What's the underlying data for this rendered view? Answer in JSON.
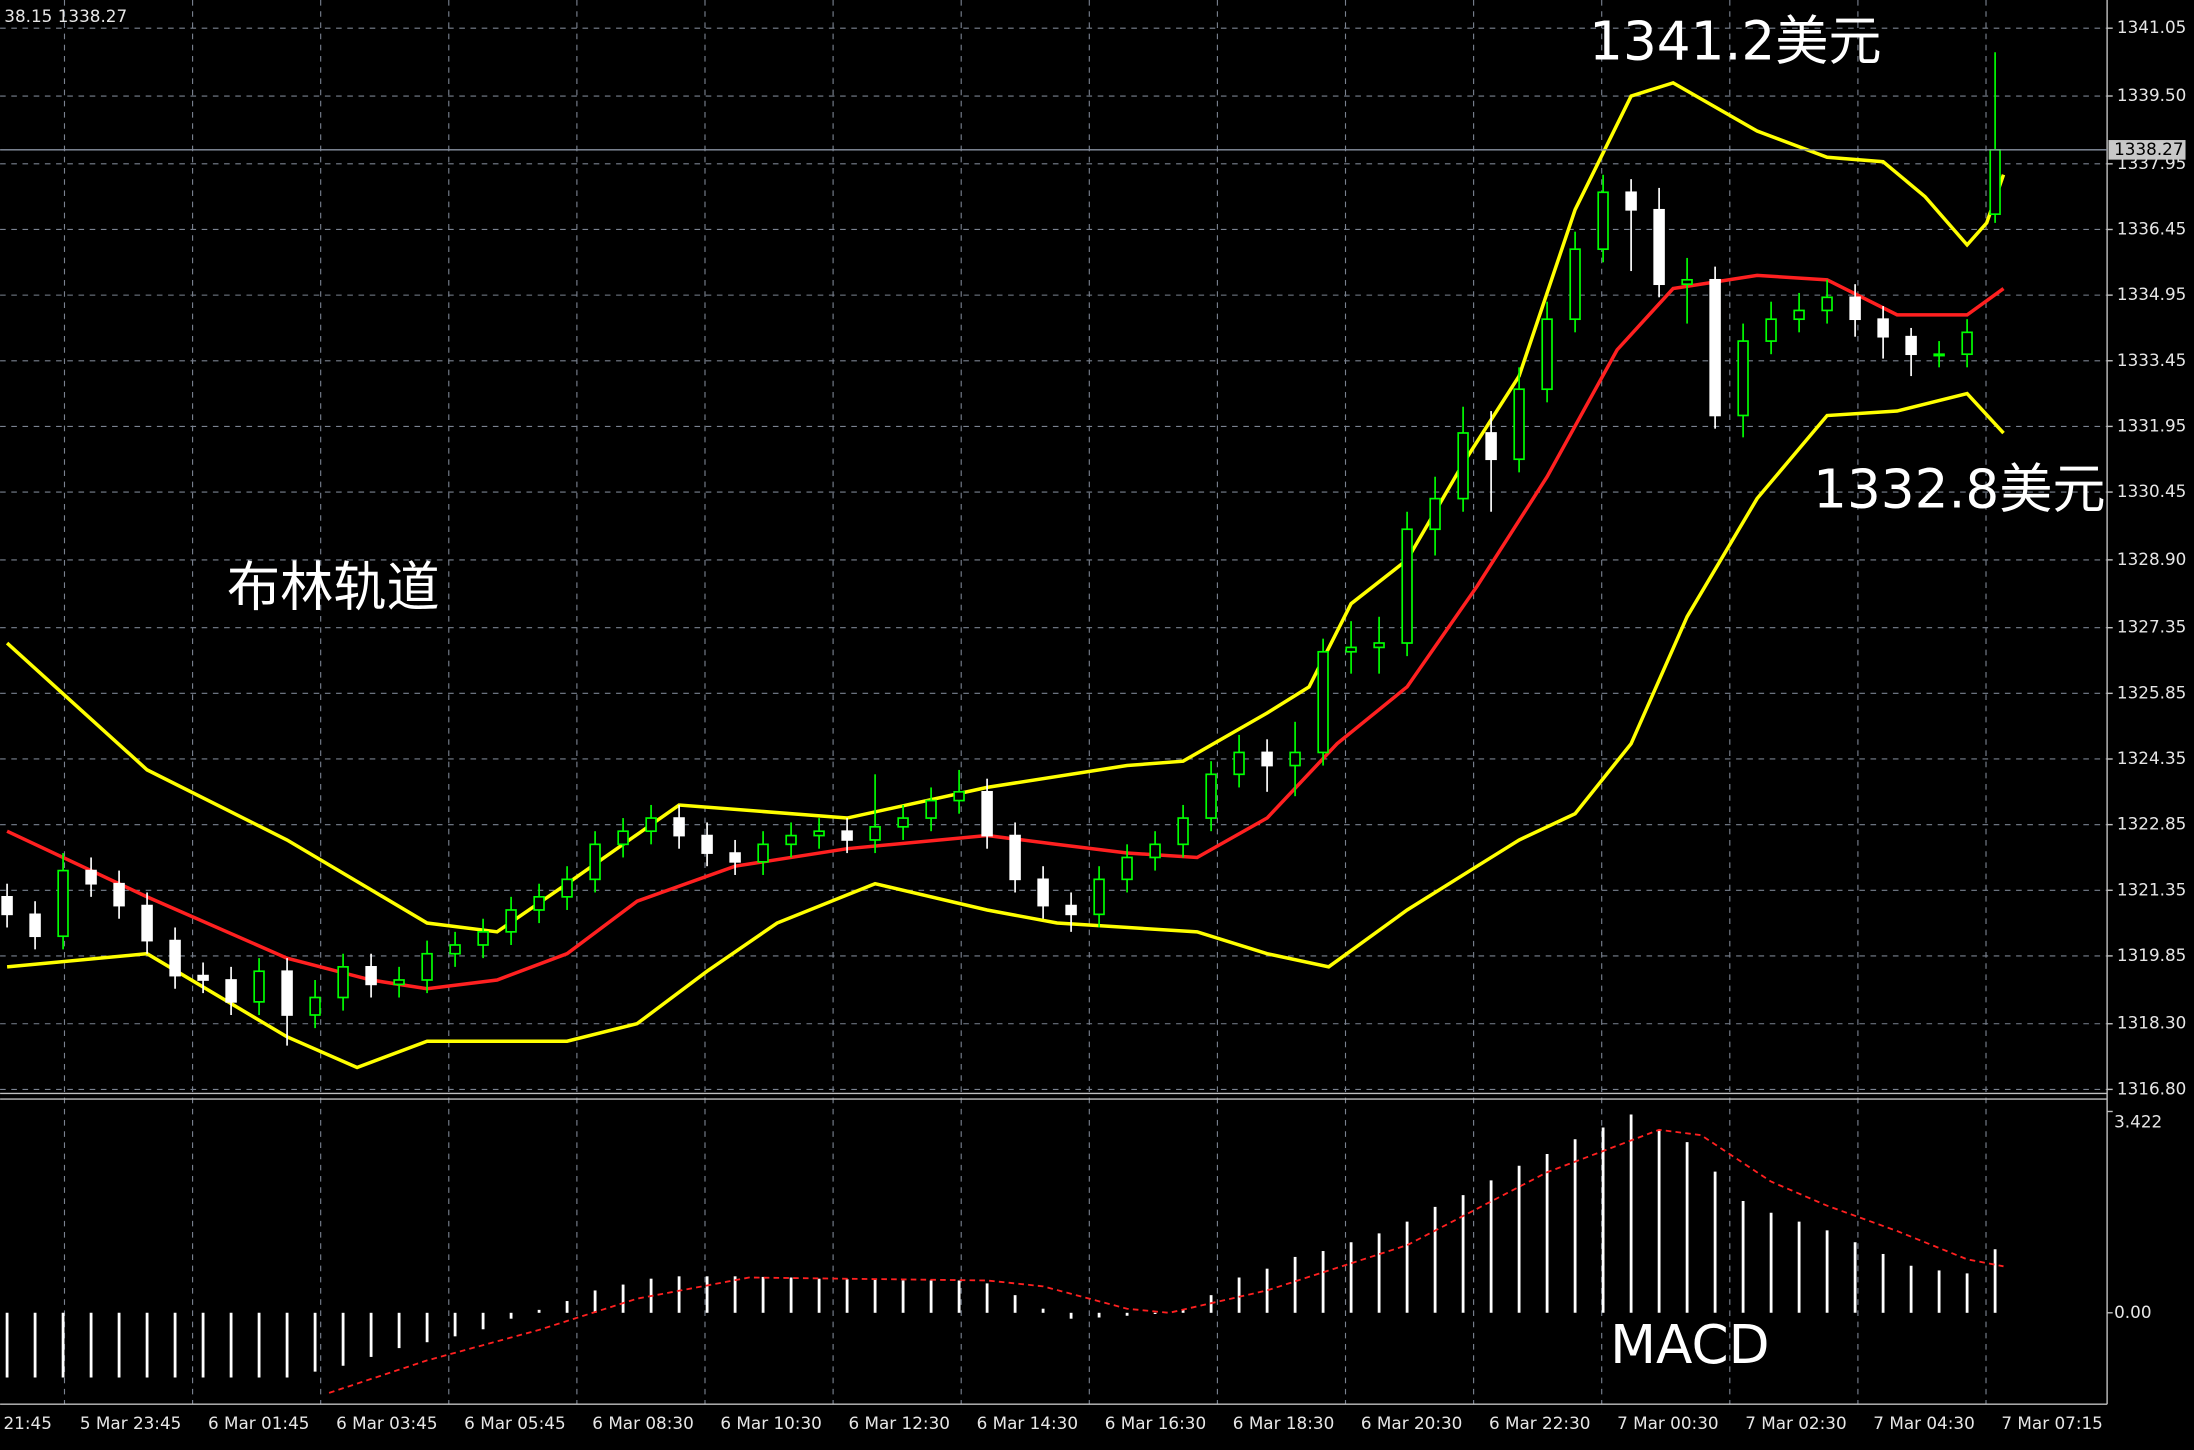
{
  "chart_data": [
    {
      "type": "candlestick",
      "info": "38.15 1338.27",
      "annotations": [
        "1341.2美元",
        "1332.8美元",
        "布林轨道"
      ],
      "time_labels": [
        "21:45",
        "5 Mar 23:45",
        "6 Mar 01:45",
        "6 Mar 03:45",
        "6 Mar 05:45",
        "6 Mar 08:30",
        "6 Mar 10:30",
        "6 Mar 12:30",
        "6 Mar 14:30",
        "6 Mar 16:30",
        "6 Mar 18:30",
        "6 Mar 20:30",
        "6 Mar 22:30",
        "7 Mar 00:30",
        "7 Mar 02:30",
        "7 Mar 04:30",
        "7 Mar 07:15"
      ],
      "ylim": [
        1316.74,
        1341.63
      ],
      "yticks": [
        1341.05,
        {
          "value": 1339.5,
          "label": "1339.50"
        },
        1337.95,
        1336.45,
        1334.95,
        1333.45,
        1331.95,
        1330.45,
        {
          "value": 1328.9,
          "label": "1328.90"
        },
        1327.35,
        1325.85,
        1324.35,
        1322.85,
        1321.35,
        1319.85,
        {
          "value": 1318.3,
          "label": "1318.30"
        },
        {
          "value": 1316.8,
          "label": "1316.80"
        }
      ],
      "grid": true,
      "up_color": "#00ff00",
      "down_color": "#ffffff",
      "current_price": 1338.27,
      "open": [
        1321.2,
        1320.8,
        1320.3,
        1321.8,
        1321.5,
        1321.0,
        1320.2,
        1319.4,
        1319.3,
        1318.8,
        1319.5,
        1318.5,
        1318.9,
        1319.6,
        1319.2,
        1319.3,
        1319.9,
        1320.1,
        1320.4,
        1320.9,
        1321.2,
        1321.6,
        1322.4,
        1322.7,
        1323.0,
        1322.6,
        1322.2,
        1322.0,
        1322.4,
        1322.6,
        1322.7,
        1322.5,
        1322.8,
        1323.0,
        1323.4,
        1323.6,
        1322.6,
        1321.6,
        1321.0,
        1320.8,
        1321.6,
        1322.1,
        1322.4,
        1323.0,
        1324.0,
        1324.5,
        1324.2,
        1324.5,
        1326.8,
        1326.9,
        1327.0,
        1329.6,
        1330.3,
        1331.8,
        1331.2,
        1332.8,
        1334.4,
        1336.0,
        1337.3,
        1336.9,
        1335.2,
        1335.3,
        1332.2,
        1333.9,
        1334.4,
        1334.6,
        1334.9,
        1334.4,
        1334.0,
        1333.6,
        1333.6,
        1336.8
      ],
      "high": [
        1321.5,
        1321.1,
        1322.2,
        1322.1,
        1321.8,
        1321.3,
        1320.5,
        1319.7,
        1319.6,
        1319.8,
        1319.8,
        1319.3,
        1319.9,
        1319.9,
        1319.6,
        1320.2,
        1320.4,
        1320.7,
        1321.2,
        1321.5,
        1321.9,
        1322.7,
        1323.0,
        1323.3,
        1323.3,
        1322.9,
        1322.5,
        1322.7,
        1322.9,
        1323.0,
        1323.0,
        1324.0,
        1323.3,
        1323.7,
        1324.1,
        1323.9,
        1322.9,
        1321.9,
        1321.3,
        1321.9,
        1322.4,
        1322.7,
        1323.3,
        1324.3,
        1324.9,
        1324.8,
        1325.2,
        1327.1,
        1327.5,
        1327.6,
        1330.0,
        1330.8,
        1332.4,
        1332.3,
        1333.3,
        1334.8,
        1336.4,
        1337.7,
        1337.6,
        1337.4,
        1335.8,
        1335.6,
        1334.3,
        1334.8,
        1335.0,
        1335.3,
        1335.2,
        1334.7,
        1334.2,
        1333.9,
        1334.4,
        1340.5
      ],
      "low": [
        1320.5,
        1320.0,
        1320.0,
        1321.2,
        1320.7,
        1319.9,
        1319.1,
        1319.0,
        1318.5,
        1318.5,
        1317.8,
        1318.2,
        1318.6,
        1318.9,
        1318.9,
        1319.0,
        1319.6,
        1319.8,
        1320.1,
        1320.6,
        1320.9,
        1321.3,
        1322.1,
        1322.4,
        1322.3,
        1321.9,
        1321.7,
        1321.7,
        1322.1,
        1322.3,
        1322.2,
        1322.2,
        1322.5,
        1322.7,
        1323.1,
        1322.3,
        1321.3,
        1320.7,
        1320.4,
        1320.5,
        1321.3,
        1321.8,
        1322.1,
        1322.7,
        1323.7,
        1323.6,
        1323.5,
        1324.2,
        1326.3,
        1326.3,
        1326.7,
        1329.0,
        1330.0,
        1330.0,
        1330.9,
        1332.5,
        1334.1,
        1335.7,
        1335.5,
        1334.9,
        1334.3,
        1331.9,
        1331.7,
        1333.6,
        1334.1,
        1334.3,
        1334.0,
        1333.5,
        1333.1,
        1333.3,
        1333.3,
        1336.6
      ],
      "close": [
        1320.8,
        1320.3,
        1321.8,
        1321.5,
        1321.0,
        1320.2,
        1319.4,
        1319.3,
        1318.8,
        1319.5,
        1318.5,
        1318.9,
        1319.6,
        1319.2,
        1319.3,
        1319.9,
        1320.1,
        1320.4,
        1320.9,
        1321.2,
        1321.6,
        1322.4,
        1322.7,
        1323.0,
        1322.6,
        1322.2,
        1322.0,
        1322.4,
        1322.6,
        1322.7,
        1322.5,
        1322.8,
        1323.0,
        1323.4,
        1323.6,
        1322.6,
        1321.6,
        1321.0,
        1320.8,
        1321.6,
        1322.1,
        1322.4,
        1323.0,
        1324.0,
        1324.5,
        1324.2,
        1324.5,
        1326.8,
        1326.9,
        1327.0,
        1329.6,
        1330.3,
        1331.8,
        1331.2,
        1332.8,
        1334.4,
        1336.0,
        1337.3,
        1336.9,
        1335.2,
        1335.3,
        1332.2,
        1333.9,
        1334.4,
        1334.6,
        1334.9,
        1334.4,
        1334.0,
        1333.6,
        1333.6,
        1334.1,
        1338.27
      ],
      "bands": [
        {
          "color": "#ffff00",
          "x": [
            0,
            5,
            10,
            15,
            17.5,
            20,
            24,
            30,
            35,
            40,
            42,
            45,
            46.5,
            48,
            50,
            52,
            54,
            56,
            58,
            59.5,
            62.5,
            65,
            67,
            68.5,
            70,
            70.7,
            71.3
          ],
          "values": [
            1327.0,
            1324.1,
            1322.5,
            1320.6,
            1320.4,
            1321.5,
            1323.3,
            1323.0,
            1323.7,
            1324.2,
            1324.3,
            1325.4,
            1326.0,
            1327.9,
            1328.9,
            1331.1,
            1333.1,
            1336.9,
            1339.5,
            1339.8,
            1338.7,
            1338.1,
            1338.0,
            1337.2,
            1336.1,
            1336.6,
            1337.7
          ]
        },
        {
          "color": "#ff2020",
          "x": [
            0,
            5,
            10,
            13,
            15,
            17.5,
            20,
            22.5,
            26,
            30,
            35,
            37.5,
            40,
            42.5,
            45,
            47.5,
            50,
            52.5,
            55,
            57.5,
            59.5,
            62.5,
            65,
            67.5,
            70,
            71.3
          ],
          "values": [
            1322.7,
            1321.2,
            1319.8,
            1319.3,
            1319.1,
            1319.3,
            1319.9,
            1321.1,
            1321.9,
            1322.3,
            1322.6,
            1322.4,
            1322.2,
            1322.1,
            1323.0,
            1324.7,
            1326.0,
            1328.3,
            1330.8,
            1333.7,
            1335.1,
            1335.4,
            1335.3,
            1334.5,
            1334.5,
            1335.1
          ]
        },
        {
          "color": "#ffff00",
          "x": [
            0,
            5,
            10,
            12.5,
            15,
            20,
            22.5,
            25,
            27.5,
            31,
            35,
            37.5,
            42.5,
            45,
            47.2,
            50,
            52.5,
            54,
            56,
            58,
            60,
            62.5,
            65,
            67.5,
            70,
            71.3
          ],
          "values": [
            1319.6,
            1319.9,
            1318.0,
            1317.3,
            1317.9,
            1317.9,
            1318.3,
            1319.5,
            1320.6,
            1321.5,
            1320.9,
            1320.6,
            1320.4,
            1319.9,
            1319.6,
            1320.9,
            1321.9,
            1322.5,
            1323.1,
            1324.7,
            1327.6,
            1330.3,
            1332.2,
            1332.3,
            1332.7,
            1331.8
          ]
        }
      ]
    },
    {
      "type": "macd",
      "title": "MACD",
      "ylim": [
        -1.53,
        3.61
      ],
      "yticks": [
        {
          "value": 3.422,
          "label": "3.422"
        },
        {
          "value": 0,
          "label": "0.00"
        }
      ],
      "histogram": {
        "color": "#ffffff",
        "values": [
          -1.1,
          -1.1,
          -1.1,
          -1.1,
          -1.1,
          -1.1,
          -1.1,
          -1.1,
          -1.1,
          -1.1,
          -1.1,
          -1.0,
          -0.9,
          -0.75,
          -0.6,
          -0.5,
          -0.4,
          -0.28,
          -0.1,
          0.05,
          0.2,
          0.38,
          0.48,
          0.58,
          0.62,
          0.62,
          0.62,
          0.61,
          0.6,
          0.58,
          0.57,
          0.56,
          0.55,
          0.55,
          0.55,
          0.5,
          0.3,
          0.07,
          -0.1,
          -0.08,
          -0.05,
          -0.02,
          0.05,
          0.3,
          0.6,
          0.75,
          0.95,
          1.05,
          1.2,
          1.35,
          1.55,
          1.8,
          2.0,
          2.25,
          2.5,
          2.7,
          2.95,
          3.15,
          3.37,
          3.1,
          2.9,
          2.4,
          1.9,
          1.7,
          1.55,
          1.4,
          1.2,
          1.0,
          0.8,
          0.72,
          0.67,
          1.08
        ]
      },
      "signal": {
        "color": "#ff2020",
        "x": [
          11.5,
          15,
          19,
          22.5,
          26.5,
          35,
          37,
          40,
          41.5,
          45,
          50,
          55,
          59,
          60.5,
          63,
          65,
          67.5,
          70,
          71.3
        ],
        "values": [
          -1.36,
          -0.81,
          -0.29,
          0.24,
          0.6,
          0.55,
          0.45,
          0.07,
          0,
          0.38,
          1.15,
          2.39,
          3.11,
          3.02,
          2.23,
          1.82,
          1.39,
          0.91,
          0.79
        ]
      }
    }
  ]
}
